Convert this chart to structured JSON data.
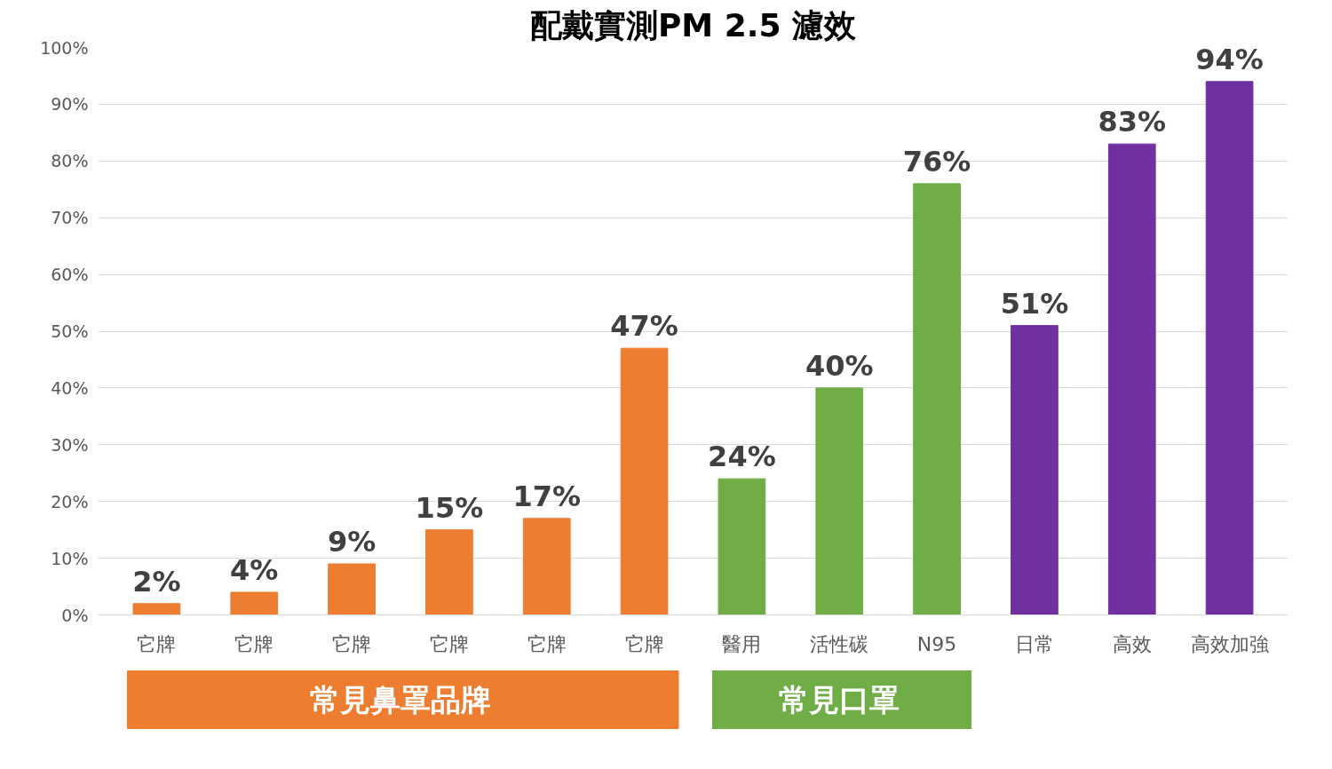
{
  "chart_data": {
    "type": "bar",
    "title": "配戴實測PM 2.5 濾效",
    "categories": [
      "它牌",
      "它牌",
      "它牌",
      "它牌",
      "它牌",
      "它牌",
      "醫用",
      "活性碳",
      "N95",
      "日常",
      "高效",
      "高效加強"
    ],
    "values": [
      2,
      4,
      9,
      15,
      17,
      47,
      24,
      40,
      76,
      51,
      83,
      94
    ],
    "colors": [
      "#ed7d31",
      "#ed7d31",
      "#ed7d31",
      "#ed7d31",
      "#ed7d31",
      "#ed7d31",
      "#70ad47",
      "#70ad47",
      "#70ad47",
      "#7030a0",
      "#7030a0",
      "#7030a0"
    ],
    "value_labels": [
      "2%",
      "4%",
      "9%",
      "15%",
      "17%",
      "47%",
      "24%",
      "40%",
      "76%",
      "51%",
      "83%",
      "94%"
    ],
    "ylim": [
      0,
      100
    ],
    "yticks": [
      {
        "value": 0,
        "label": "0%"
      },
      {
        "value": 10,
        "label": "10%"
      },
      {
        "value": 20,
        "label": "20%"
      },
      {
        "value": 30,
        "label": "30%"
      },
      {
        "value": 40,
        "label": "40%"
      },
      {
        "value": 50,
        "label": "50%"
      },
      {
        "value": 60,
        "label": "60%"
      },
      {
        "value": 70,
        "label": "70%"
      },
      {
        "value": 80,
        "label": "80%"
      },
      {
        "value": 90,
        "label": "90%"
      },
      {
        "value": 100,
        "label": "100%"
      }
    ],
    "grid": "y",
    "annotations": [
      "常見鼻罩品牌",
      "常見口罩"
    ]
  }
}
